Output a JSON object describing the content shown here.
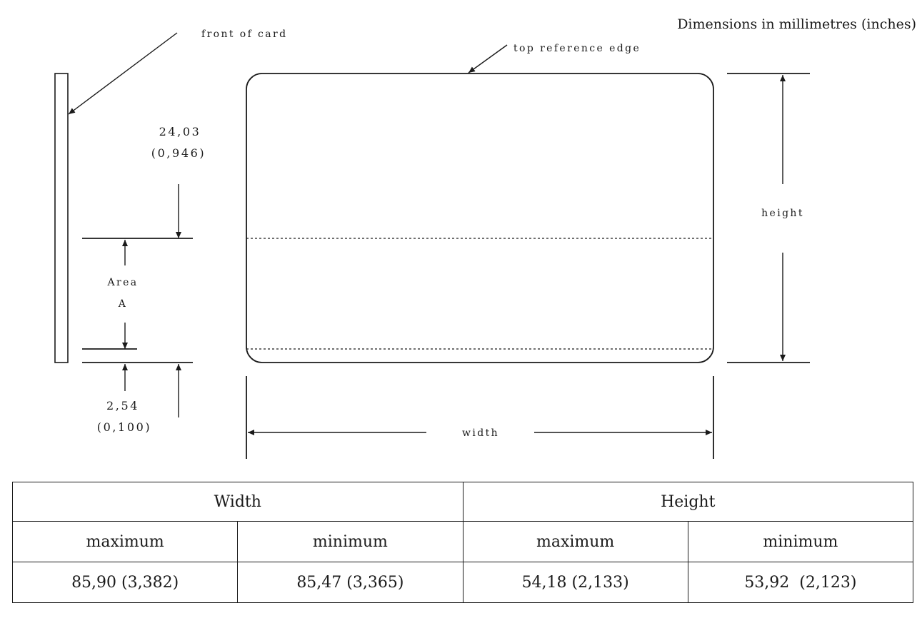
{
  "units_note": "Dimensions in millimetres (inches)",
  "labels": {
    "front_of_card": "front of card",
    "top_reference_edge": "top reference edge",
    "height": "height",
    "width": "width",
    "area_line1": "Area",
    "area_line2": "A",
    "dim_top_mm": "24,03",
    "dim_top_in": "(0,946)",
    "dim_bottom_mm": "2,54",
    "dim_bottom_in": "(0,100)"
  },
  "table": {
    "groups": [
      "Width",
      "Height"
    ],
    "subheaders": [
      "maximum",
      "minimum",
      "maximum",
      "minimum"
    ],
    "values": [
      "85,90 (3,382)",
      "85,47 (3,365)",
      "54,18 (2,133)",
      "53,92  (2,123)"
    ]
  }
}
